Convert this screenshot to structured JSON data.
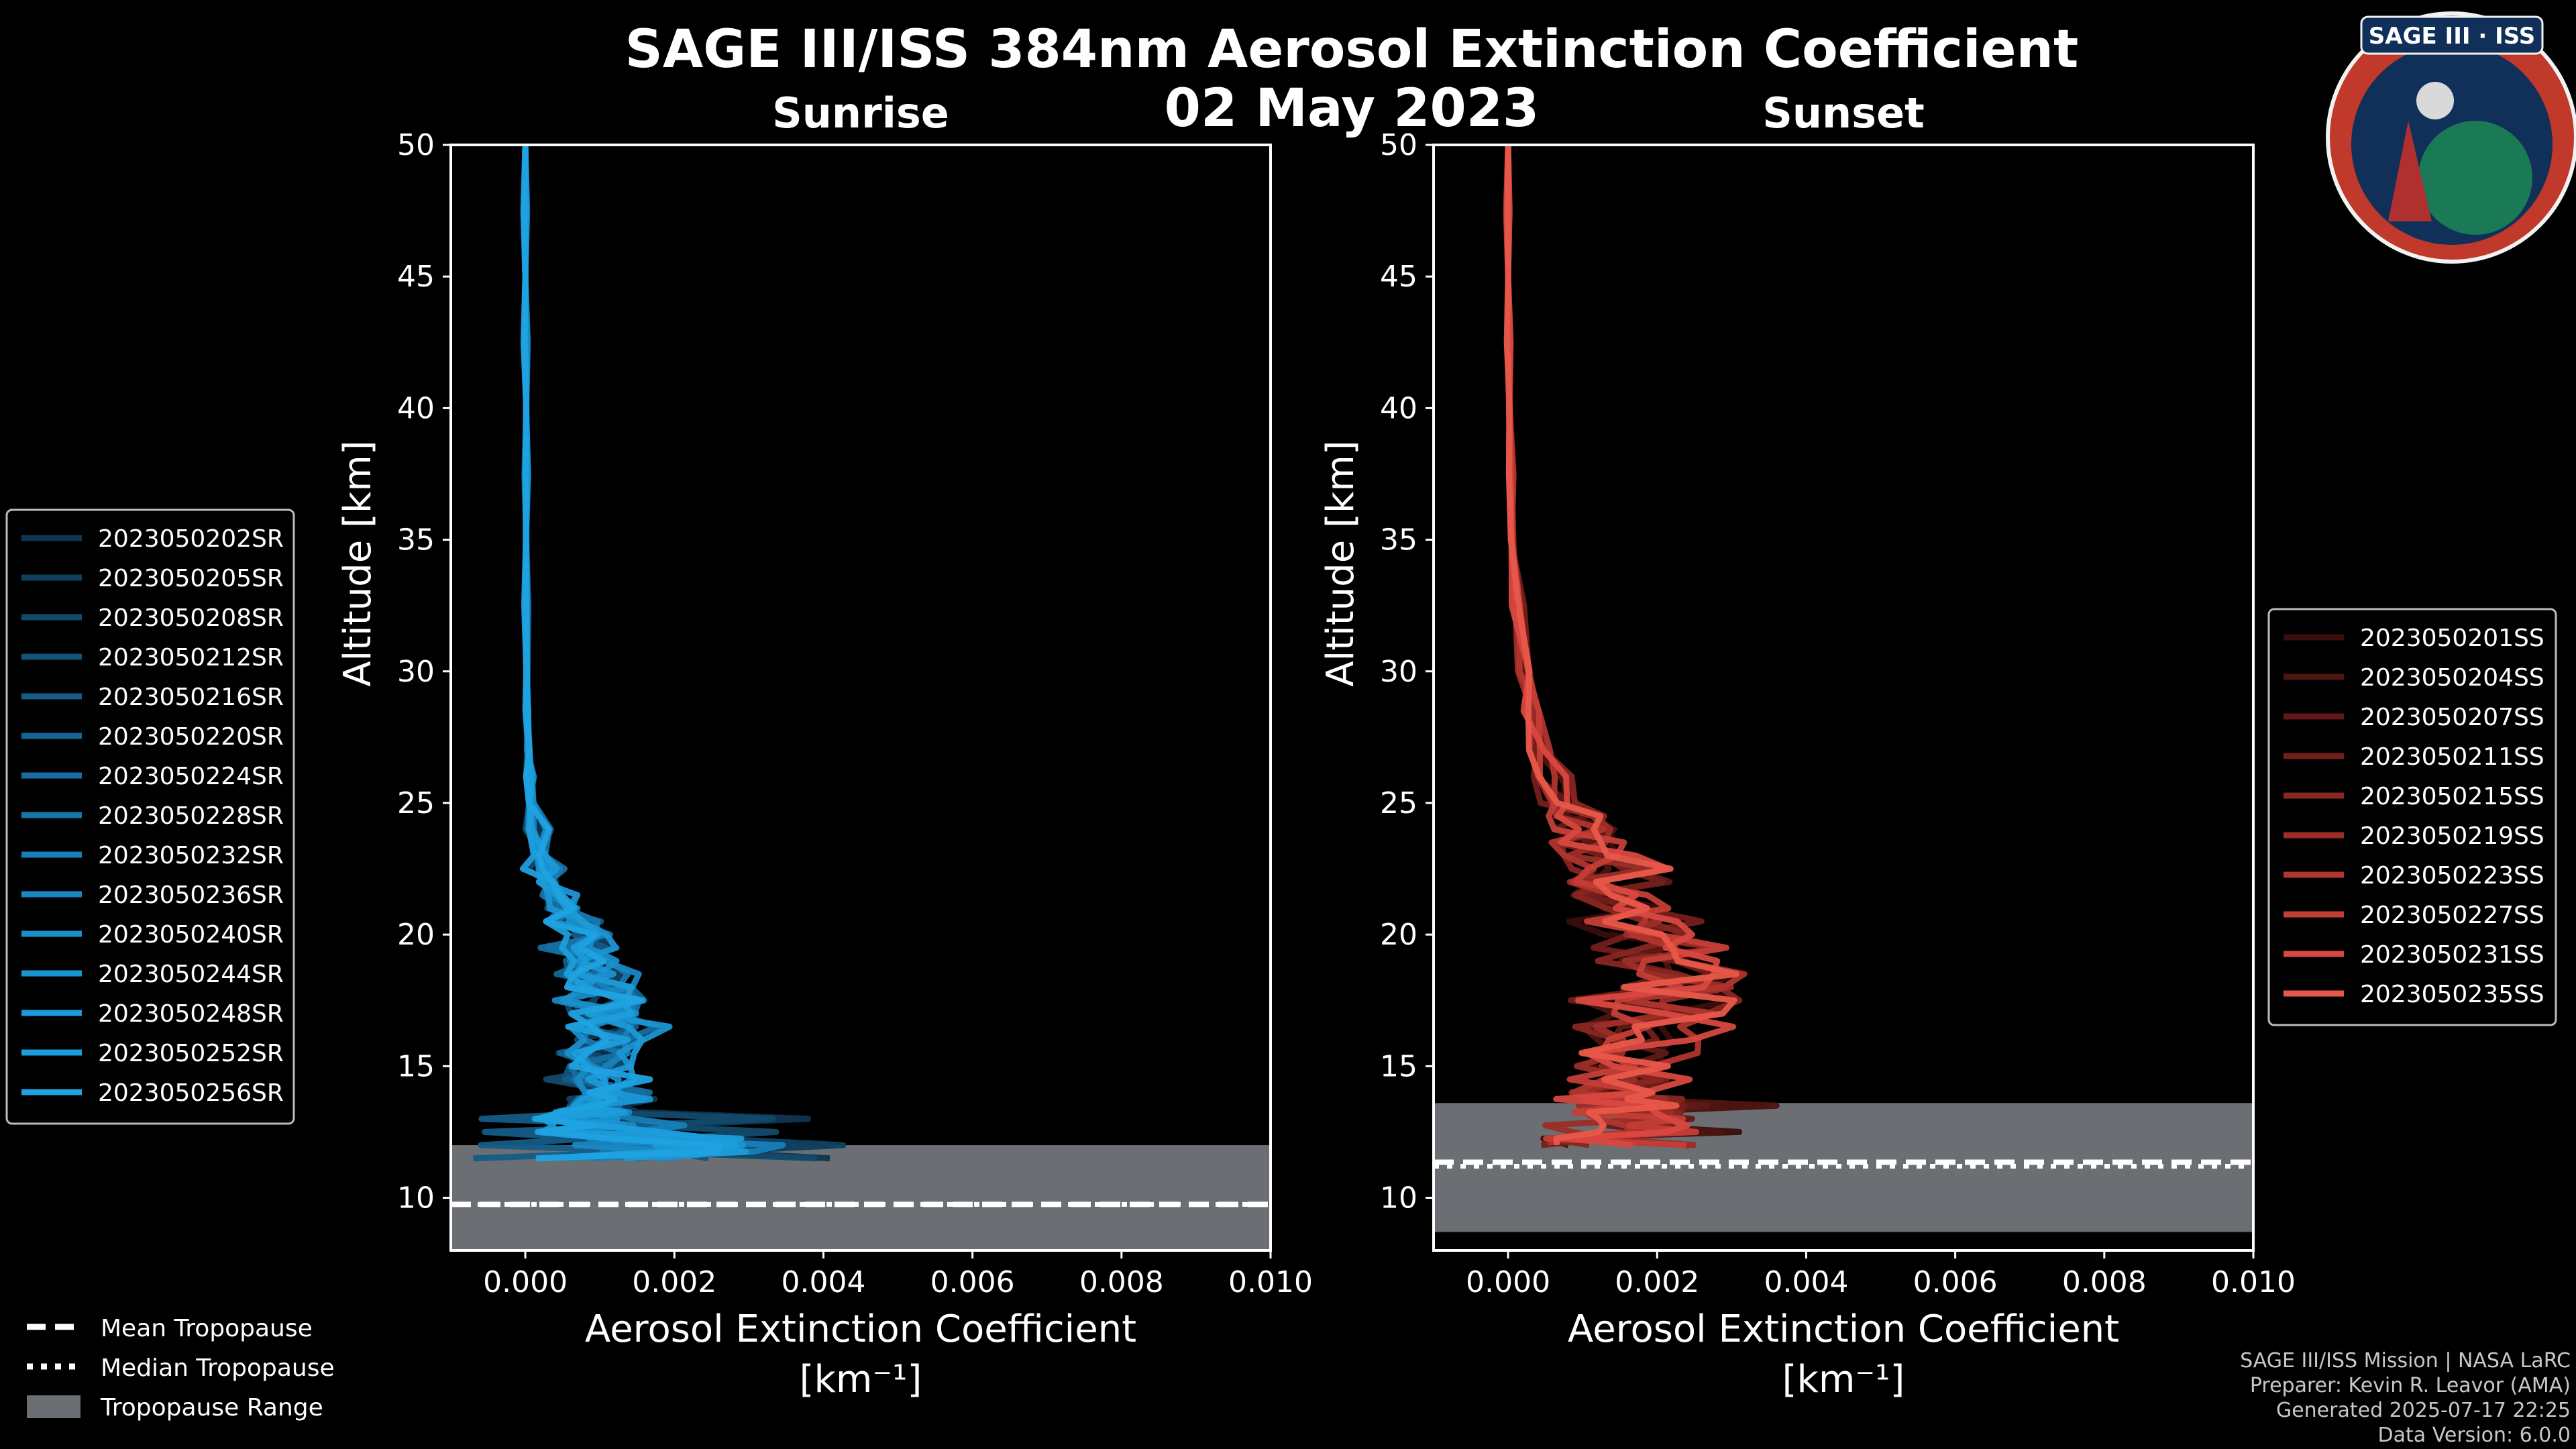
{
  "title": "SAGE III/ISS 384nm Aerosol Extinction Coefficient",
  "date": "02 May 2023",
  "logo_text": "SAGE III · ISS",
  "colors": {
    "sunrise": "#1a8fd0",
    "sunset": "#e8584a",
    "tropopause_range": "#6b6e72",
    "background": "#000000"
  },
  "tropopause_legend": {
    "mean": "Mean Tropopause",
    "median": "Median Tropopause",
    "range": "Tropopause Range"
  },
  "credits": [
    "SAGE III/ISS Mission | NASA LaRC",
    "Preparer: Kevin R. Leavor (AMA)",
    "Generated 2025-07-17 22:25",
    "Data Version: 6.0.0"
  ],
  "chart_data": [
    {
      "type": "line",
      "title": "Sunrise",
      "xlabel": "Aerosol Extinction Coefficient",
      "xlabel_units": "[km⁻¹]",
      "ylabel": "Altitude [km]",
      "xlim": [
        -0.001,
        0.01
      ],
      "ylim": [
        8,
        50
      ],
      "xticks": [
        "0.000",
        "0.002",
        "0.004",
        "0.006",
        "0.008",
        "0.010"
      ],
      "yticks": [
        "10",
        "15",
        "20",
        "25",
        "30",
        "35",
        "40",
        "45",
        "50"
      ],
      "tropopause": {
        "min": 8,
        "max": 12.0,
        "mean": 9.75,
        "median": 9.75
      },
      "legend_position": "left",
      "series": [
        {
          "name": "2023050202SR",
          "color": "#0f3552"
        },
        {
          "name": "2023050205SR",
          "color": "#10405f"
        },
        {
          "name": "2023050208SR",
          "color": "#124a6c"
        },
        {
          "name": "2023050212SR",
          "color": "#13537a"
        },
        {
          "name": "2023050216SR",
          "color": "#145c87"
        },
        {
          "name": "2023050220SR",
          "color": "#156594"
        },
        {
          "name": "2023050224SR",
          "color": "#166ea1"
        },
        {
          "name": "2023050228SR",
          "color": "#1677ad"
        },
        {
          "name": "2023050232SR",
          "color": "#1780b9"
        },
        {
          "name": "2023050236SR",
          "color": "#1888c3"
        },
        {
          "name": "2023050240SR",
          "color": "#198fcc"
        },
        {
          "name": "2023050244SR",
          "color": "#1a95d3"
        },
        {
          "name": "2023050248SR",
          "color": "#1c9ad8"
        },
        {
          "name": "2023050252SR",
          "color": "#1d9edc"
        },
        {
          "name": "2023050256SR",
          "color": "#1fa2e0"
        }
      ],
      "profile_altitudes": [
        11.5,
        12,
        12.5,
        13,
        13.5,
        14,
        15,
        16,
        17,
        18,
        19,
        20,
        21,
        22,
        23,
        25,
        27,
        30,
        35,
        40,
        45,
        50
      ],
      "profile_shape": [
        0.0016,
        0.0024,
        0.0014,
        0.0011,
        0.0009,
        0.0012,
        0.001,
        0.0011,
        0.0011,
        0.001,
        0.0009,
        0.0008,
        0.0005,
        0.0003,
        0.0002,
        8e-05,
        4e-05,
        2e-05,
        1e-05,
        1e-05,
        0.0,
        0.0
      ],
      "profile_peak_extremes": [
        0.005,
        0.0045,
        0.004,
        0.0032,
        -0.0008,
        0.002,
        0.0015,
        0.0012,
        0.001,
        0.0008,
        0.0006,
        0.0004,
        0.0003,
        0.0002,
        0.0002,
        0.0001,
        0.0001
      ]
    },
    {
      "type": "line",
      "title": "Sunset",
      "xlabel": "Aerosol Extinction Coefficient",
      "xlabel_units": "[km⁻¹]",
      "ylabel": "Altitude [km]",
      "xlim": [
        -0.001,
        0.01
      ],
      "ylim": [
        8,
        50
      ],
      "xticks": [
        "0.000",
        "0.002",
        "0.004",
        "0.006",
        "0.008",
        "0.010"
      ],
      "yticks": [
        "10",
        "15",
        "20",
        "25",
        "30",
        "35",
        "40",
        "45",
        "50"
      ],
      "tropopause": {
        "min": 8.7,
        "max": 13.6,
        "mean": 11.35,
        "median": 11.2
      },
      "legend_position": "right",
      "series": [
        {
          "name": "2023050201SS",
          "color": "#3a0e0c"
        },
        {
          "name": "2023050204SS",
          "color": "#4d1411"
        },
        {
          "name": "2023050207SS",
          "color": "#601916"
        },
        {
          "name": "2023050211SS",
          "color": "#741f1b"
        },
        {
          "name": "2023050215SS",
          "color": "#882621"
        },
        {
          "name": "2023050219SS",
          "color": "#9c2d27"
        },
        {
          "name": "2023050223SS",
          "color": "#b0352e"
        },
        {
          "name": "2023050227SS",
          "color": "#c43e36"
        },
        {
          "name": "2023050231SS",
          "color": "#d84840"
        },
        {
          "name": "2023050235SS",
          "color": "#e8584a"
        }
      ],
      "profile_altitudes": [
        12,
        12.5,
        13,
        13.5,
        14,
        15,
        16,
        17,
        18,
        19,
        20,
        21,
        22,
        23,
        24,
        25,
        27,
        30,
        35,
        40,
        45,
        50
      ],
      "profile_shape": [
        0.0008,
        0.0012,
        0.0018,
        0.0016,
        0.0014,
        0.0015,
        0.0018,
        0.002,
        0.0021,
        0.002,
        0.0019,
        0.0017,
        0.0015,
        0.0012,
        0.001,
        0.0007,
        0.0004,
        0.0002,
        5e-05,
        2e-05,
        0.0,
        0.0
      ],
      "profile_peak_extremes": [
        0.0035,
        0.004,
        0.003,
        0.0027,
        0.0025,
        0.003,
        0.0029,
        0.0027,
        0.0025,
        0.002
      ]
    }
  ]
}
